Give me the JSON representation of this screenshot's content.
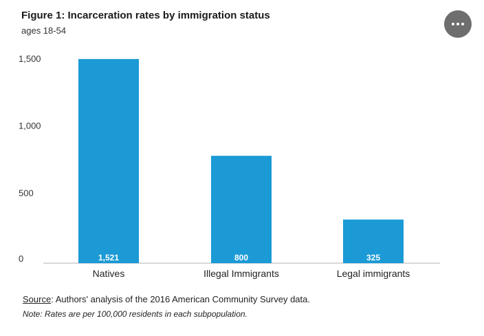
{
  "header": {
    "title": "Figure 1: Incarceration rates by immigration status",
    "subtitle": "ages 18-54"
  },
  "chart_data": {
    "type": "bar",
    "categories": [
      "Natives",
      "Illegal Immigrants",
      "Legal immigrants"
    ],
    "values": [
      1521,
      800,
      325
    ],
    "data_labels": [
      "1,521",
      "800",
      "325"
    ],
    "y_ticks": [
      0,
      500,
      1000,
      1500
    ],
    "y_tick_labels": [
      "0",
      "500",
      "1,000",
      "1,500"
    ],
    "ylim": [
      0,
      1550
    ],
    "bar_color": "#1b9ad6",
    "label_color": "#ffffff",
    "grid": false,
    "title": "Figure 1: Incarceration rates by immigration status",
    "subtitle": "ages 18-54",
    "xlabel": "",
    "ylabel": ""
  },
  "footer": {
    "source_label": "Source",
    "source_text": ": Authors' analysis of the 2016 American Community Survey data.",
    "note": "Note: Rates are per 100,000 residents in each subpopulation."
  }
}
